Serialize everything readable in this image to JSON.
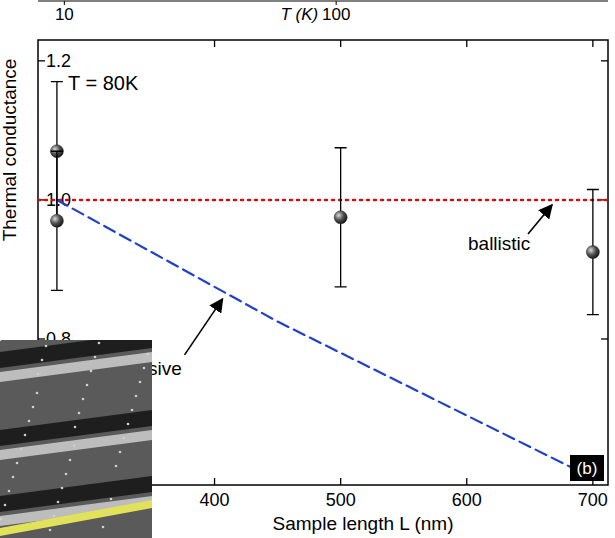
{
  "chart_data": [
    {
      "type": "line",
      "xlabel": "T (K)",
      "log": "x",
      "xlim": [
        8,
        1000
      ],
      "xticks": [
        10,
        100
      ]
    },
    {
      "type": "scatter",
      "title": "T = 80K",
      "xlabel": "Sample length L (nm)",
      "ylabel": "Thermal conductance",
      "panel": "(b)",
      "xlim": [
        260,
        712
      ],
      "xticks": [
        400,
        500,
        600,
        700
      ],
      "ylim": [
        0.59,
        1.23
      ],
      "yticks": [
        0.8,
        {
          "value": 1.0,
          "label": "1.0"
        },
        1.2
      ],
      "series": [
        {
          "type": "scatter",
          "marker": "circle",
          "color": "#2a2a2a",
          "x": [
            275,
            275,
            500,
            700
          ],
          "values": [
            1.07,
            0.97,
            0.975,
            0.925
          ],
          "errors": [
            0.1,
            0.1,
            0.1,
            0.09
          ]
        },
        {
          "type": "line",
          "name": "ballistic",
          "line_style": "dotted",
          "color": "#cc1111",
          "x": [
            260,
            712
          ],
          "values": [
            1.0,
            1.0
          ]
        },
        {
          "type": "line",
          "name": "diffusive",
          "line_style": "dashed",
          "color": "#1f3fcf",
          "x": [
            275,
            300,
            350,
            400,
            450,
            500,
            550,
            600,
            650,
            700
          ],
          "values": [
            1.0,
            0.975,
            0.925,
            0.875,
            0.825,
            0.78,
            0.735,
            0.69,
            0.645,
            0.6
          ]
        }
      ]
    }
  ]
}
